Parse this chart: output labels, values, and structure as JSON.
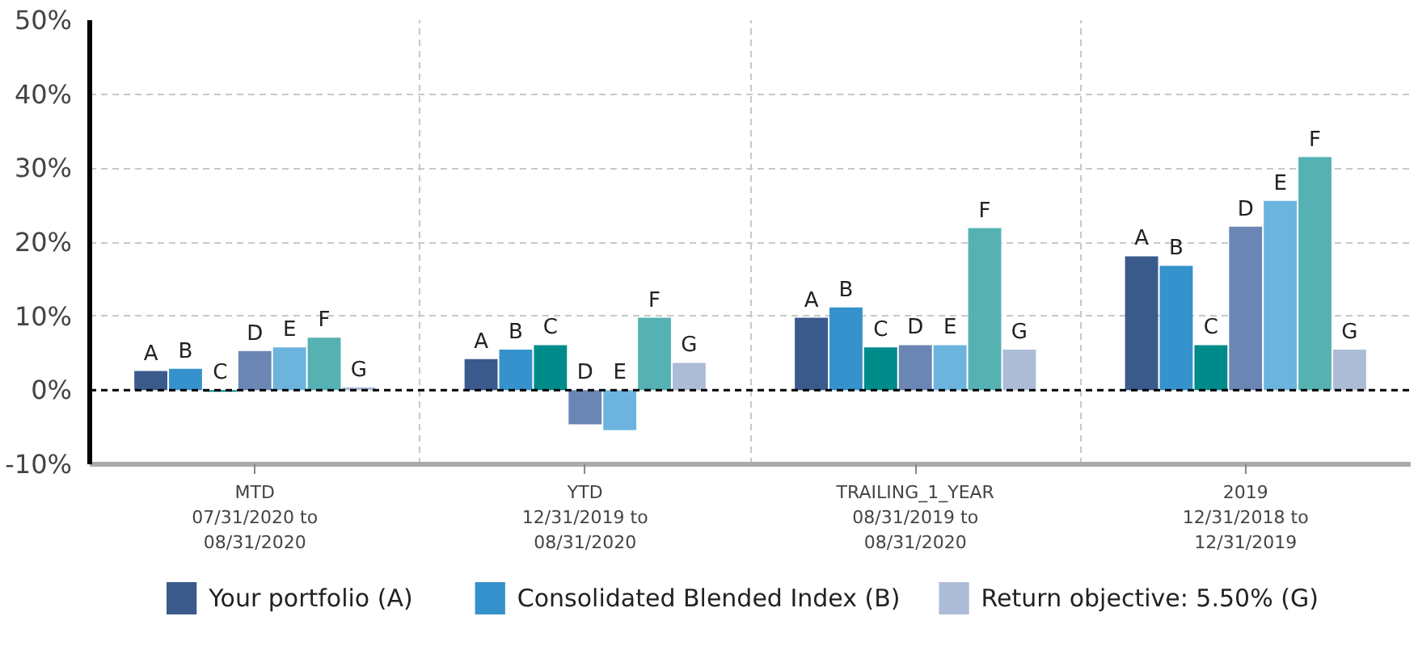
{
  "chart_data": {
    "type": "bar",
    "categories": [
      "MTD\n07/31/2020 to\n08/31/2020",
      "YTD\n12/31/2019 to\n08/31/2020",
      "TRAILING_1_YEAR\n08/31/2019 to\n08/31/2020",
      "2019\n12/31/2018 to\n12/31/2019"
    ],
    "series": [
      {
        "name": "Your portfolio (A)",
        "color": "#3a5a8c",
        "values": [
          2.6,
          4.2,
          9.8,
          18.1
        ],
        "value_labels": [
          "A",
          "A",
          "A",
          "A"
        ]
      },
      {
        "name": "Consolidated Blended Index (B)",
        "color": "#3592cc",
        "values": [
          2.9,
          5.5,
          11.2,
          16.8
        ],
        "value_labels": [
          "B",
          "B",
          "B",
          "B"
        ]
      },
      {
        "color": "#008b8b",
        "values": [
          -0.2,
          6.1,
          5.8,
          6.1
        ],
        "value_labels": [
          "C",
          "C",
          "C",
          "C"
        ]
      },
      {
        "color": "#6b86b4",
        "values": [
          5.3,
          -4.6,
          6.1,
          22.1
        ],
        "value_labels": [
          "D",
          "D",
          "D",
          "D"
        ]
      },
      {
        "color": "#6cb4de",
        "values": [
          5.8,
          -5.4,
          6.1,
          25.6
        ],
        "value_labels": [
          "E",
          "E",
          "E",
          "E"
        ]
      },
      {
        "color": "#56b1b3",
        "values": [
          7.1,
          9.8,
          21.9,
          31.5
        ],
        "value_labels": [
          "F",
          "F",
          "F",
          "F"
        ]
      },
      {
        "name": "Return objective: 5.50% (G)",
        "color": "#adbcd6",
        "values": [
          0.4,
          3.7,
          5.5,
          5.5
        ],
        "value_labels": [
          "G",
          "G",
          "G",
          "G"
        ]
      }
    ],
    "ylim": [
      -10,
      50
    ],
    "yticks": [
      {
        "value": -10,
        "label": "-10%"
      },
      {
        "value": 0,
        "label": "0%"
      },
      {
        "value": 10,
        "label": "10%"
      },
      {
        "value": 20,
        "label": "20%"
      },
      {
        "value": 30,
        "label": "30%"
      },
      {
        "value": 40,
        "label": "40%"
      },
      {
        "value": 50,
        "label": "50%"
      }
    ],
    "grid": true,
    "legend": "bottom",
    "ref_lines": [
      {
        "axis": "y",
        "value": 0,
        "color": "#000000",
        "line_style": "dashed"
      }
    ]
  }
}
